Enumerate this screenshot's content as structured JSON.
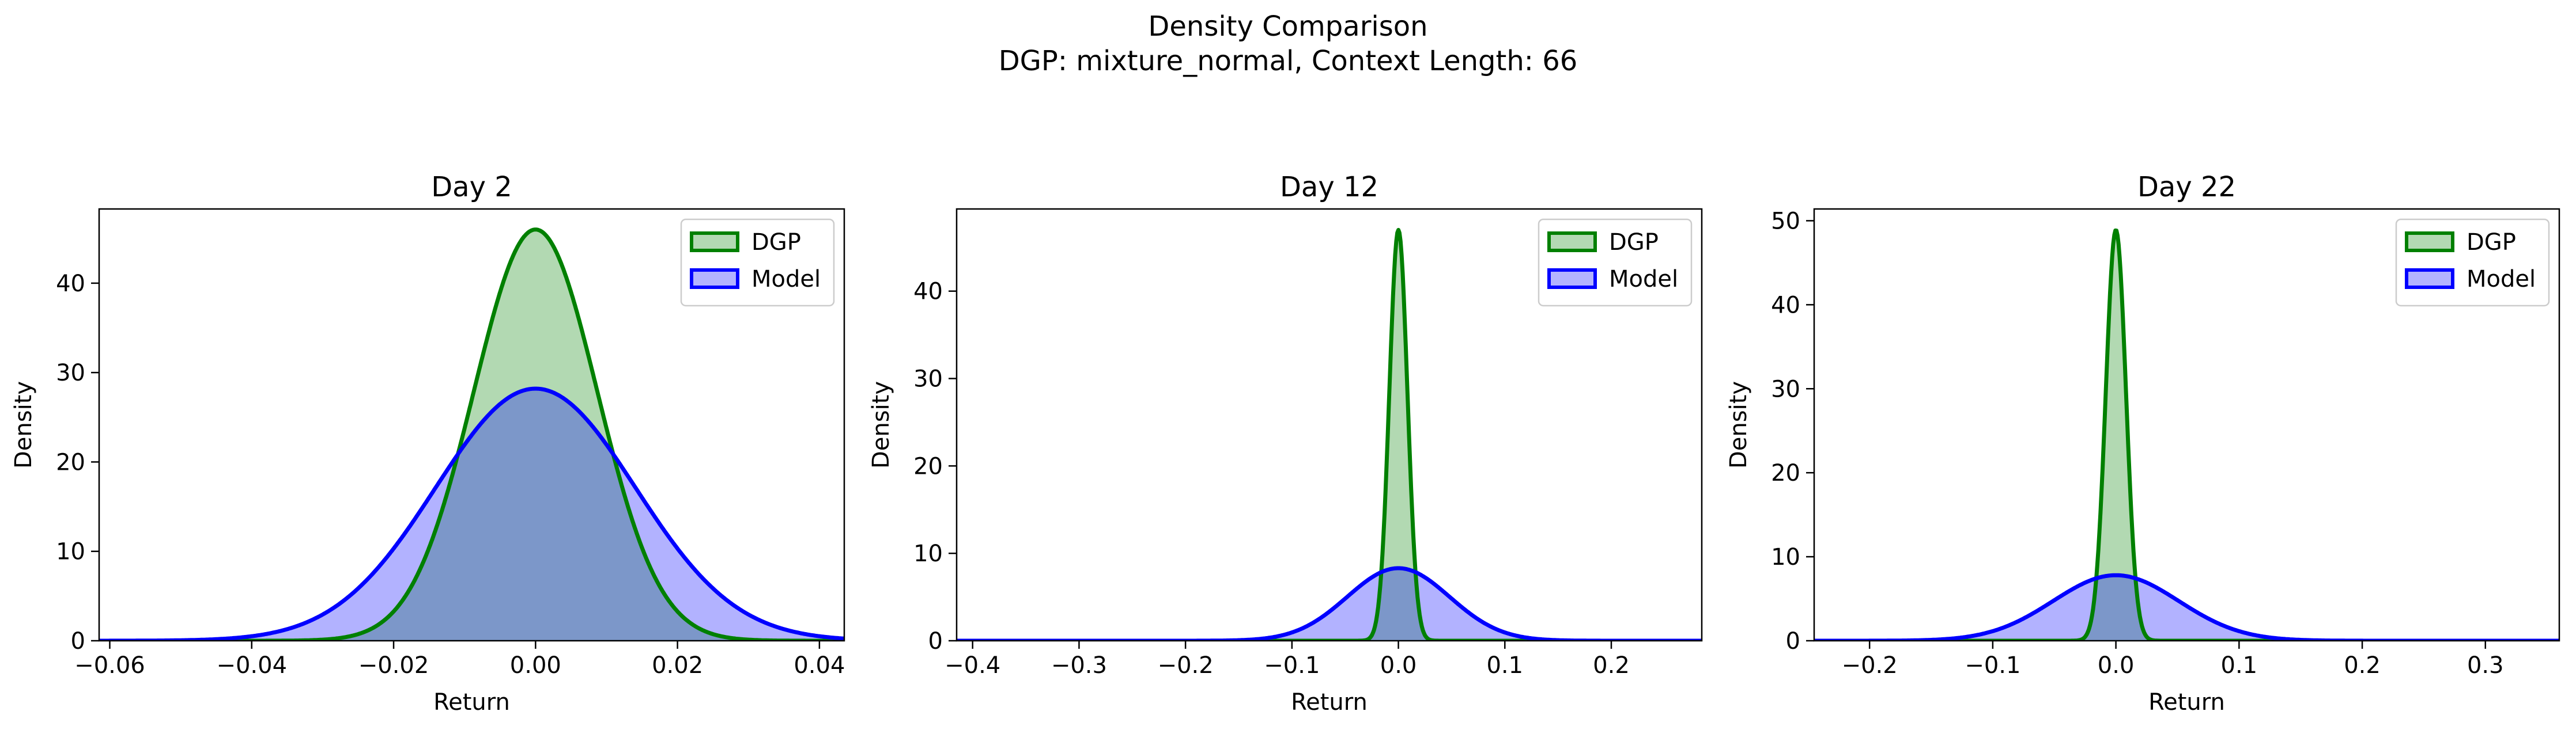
{
  "figure": {
    "title_line1": "Density Comparison",
    "title_line2": "DGP: mixture_normal, Context Length: 66"
  },
  "colors": {
    "dgp_line": "#008000",
    "dgp_fill": "#b3d9b3",
    "model_line": "#0000ff",
    "model_fill": "#b3b3ff",
    "overlap_fill": "#7f99cc"
  },
  "chart_data": [
    {
      "type": "area",
      "title": "Day 2",
      "xlabel": "Return",
      "ylabel": "Density",
      "xlim": [
        -0.0615,
        0.0435
      ],
      "ylim": [
        0,
        48.3
      ],
      "xticks": [
        -0.06,
        -0.04,
        -0.02,
        0.0,
        0.02,
        0.04
      ],
      "xtick_labels": [
        "−0.06",
        "−0.04",
        "−0.02",
        "0.00",
        "0.02",
        "0.04"
      ],
      "yticks": [
        0,
        10,
        20,
        30,
        40
      ],
      "ytick_labels": [
        "0",
        "10",
        "20",
        "30",
        "40"
      ],
      "legend": {
        "position": "upper-right",
        "entries": [
          "DGP",
          "Model"
        ]
      },
      "series": [
        {
          "name": "DGP",
          "kind": "gaussian",
          "mean": 0.0,
          "peak": 46.0
        },
        {
          "name": "Model",
          "kind": "gaussian",
          "mean": 0.0,
          "peak": 28.2
        }
      ]
    },
    {
      "type": "area",
      "title": "Day 12",
      "xlabel": "Return",
      "ylabel": "Density",
      "xlim": [
        -0.415,
        0.285
      ],
      "ylim": [
        0,
        49.4
      ],
      "xticks": [
        -0.4,
        -0.3,
        -0.2,
        -0.1,
        0.0,
        0.1,
        0.2
      ],
      "xtick_labels": [
        "−0.4",
        "−0.3",
        "−0.2",
        "−0.1",
        "0.0",
        "0.1",
        "0.2"
      ],
      "yticks": [
        0,
        10,
        20,
        30,
        40
      ],
      "ytick_labels": [
        "0",
        "10",
        "20",
        "30",
        "40"
      ],
      "legend": {
        "position": "upper-right",
        "entries": [
          "DGP",
          "Model"
        ]
      },
      "series": [
        {
          "name": "DGP",
          "kind": "gaussian",
          "mean": 0.0,
          "peak": 47.0
        },
        {
          "name": "Model",
          "kind": "gaussian",
          "mean": 0.0,
          "peak": 8.3
        }
      ]
    },
    {
      "type": "area",
      "title": "Day 22",
      "xlabel": "Return",
      "ylabel": "Density",
      "xlim": [
        -0.245,
        0.36
      ],
      "ylim": [
        0,
        51.4
      ],
      "xticks": [
        -0.2,
        -0.1,
        0.0,
        0.1,
        0.2,
        0.3
      ],
      "xtick_labels": [
        "−0.2",
        "−0.1",
        "0.0",
        "0.1",
        "0.2",
        "0.3"
      ],
      "yticks": [
        0,
        10,
        20,
        30,
        40,
        50
      ],
      "ytick_labels": [
        "0",
        "10",
        "20",
        "30",
        "40",
        "50"
      ],
      "legend": {
        "position": "upper-right",
        "entries": [
          "DGP",
          "Model"
        ]
      },
      "series": [
        {
          "name": "DGP",
          "kind": "gaussian",
          "mean": 0.0,
          "peak": 48.9
        },
        {
          "name": "Model",
          "kind": "gaussian",
          "mean": 0.0,
          "peak": 7.8
        }
      ]
    }
  ]
}
